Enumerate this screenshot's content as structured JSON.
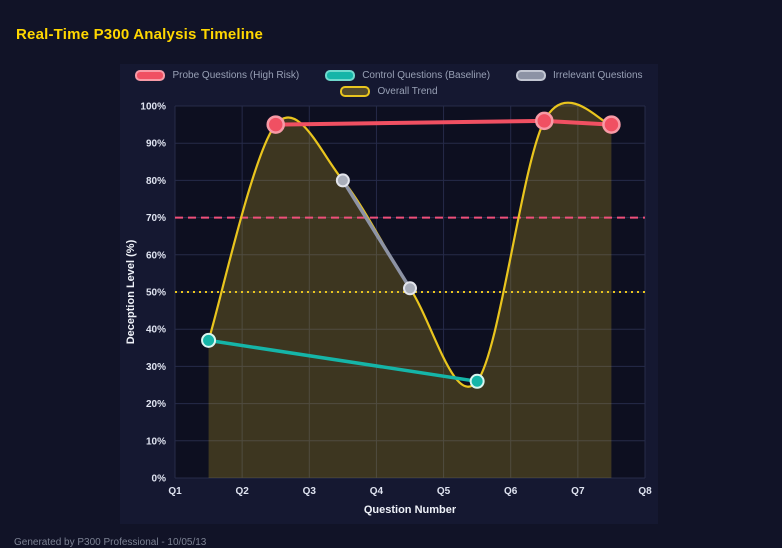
{
  "page": {
    "title": "Real-Time P300 Analysis Timeline",
    "footer": "Generated by P300 Professional - 10/05/13"
  },
  "colors": {
    "background": "#111327",
    "panel": "#151831",
    "plot_bg": "#0d0f20",
    "grid": "#262b49",
    "tick_text": "#dfe3f0",
    "axis_title": "#eef1f8",
    "legend_text": "#98a0b5",
    "title_text": "#ffd700",
    "footer_text": "#7d8394"
  },
  "chart_data": {
    "type": "line",
    "title": "Real-Time P300 Analysis Timeline",
    "xlabel": "Question Number",
    "ylabel": "Deception Level (%)",
    "x_range": [
      1,
      8
    ],
    "ylim": [
      0,
      100
    ],
    "grid": true,
    "legend_position": "top",
    "x_ticks": [
      {
        "v": 1,
        "label": "Q1"
      },
      {
        "v": 2,
        "label": "Q2"
      },
      {
        "v": 3,
        "label": "Q3"
      },
      {
        "v": 4,
        "label": "Q4"
      },
      {
        "v": 5,
        "label": "Q5"
      },
      {
        "v": 6,
        "label": "Q6"
      },
      {
        "v": 7,
        "label": "Q7"
      },
      {
        "v": 8,
        "label": "Q8"
      }
    ],
    "y_ticks": [
      {
        "v": 0,
        "label": "0%"
      },
      {
        "v": 10,
        "label": "10%"
      },
      {
        "v": 20,
        "label": "20%"
      },
      {
        "v": 30,
        "label": "30%"
      },
      {
        "v": 40,
        "label": "40%"
      },
      {
        "v": 50,
        "label": "50%"
      },
      {
        "v": 60,
        "label": "60%"
      },
      {
        "v": 70,
        "label": "70%"
      },
      {
        "v": 80,
        "label": "80%"
      },
      {
        "v": 90,
        "label": "90%"
      },
      {
        "v": 100,
        "label": "100%"
      }
    ],
    "series": [
      {
        "id": "probe",
        "name": "Probe Questions (High Risk)",
        "line_color": "#f05062",
        "line_width": 4,
        "marker_r": 8,
        "marker_fill": "#f05062",
        "marker_stroke": "#f79aa6",
        "marker_stroke_w": 2.5,
        "swatch_fill": "#f05062",
        "swatch_border": "#f79aa6",
        "points": [
          [
            2.5,
            95
          ],
          [
            6.5,
            96
          ],
          [
            7.5,
            95
          ]
        ]
      },
      {
        "id": "control",
        "name": "Control Questions (Baseline)",
        "line_color": "#15b5a8",
        "line_width": 3.5,
        "marker_r": 6.5,
        "marker_fill": "#15b5a8",
        "marker_stroke": "#d9f6f1",
        "marker_stroke_w": 2,
        "swatch_fill": "#15b5a8",
        "swatch_border": "#6fd9cd",
        "points": [
          [
            1.5,
            37
          ],
          [
            5.5,
            26
          ]
        ]
      },
      {
        "id": "irrelevant",
        "name": "Irrelevant Questions",
        "line_color": "#8d93a5",
        "line_width": 3.5,
        "marker_r": 6,
        "marker_fill": "#a9aeba",
        "marker_stroke": "#e3e5ec",
        "marker_stroke_w": 2,
        "swatch_fill": "#8d93a5",
        "swatch_border": "#c2c6d2",
        "points": [
          [
            3.5,
            80
          ],
          [
            4.5,
            51
          ]
        ]
      },
      {
        "id": "trend",
        "name": "Overall Trend",
        "line_color": "#e9c51e",
        "line_width": 2.2,
        "smooth": true,
        "fill": true,
        "fill_color": "rgba(233,197,30,0.22)",
        "marker_r": 0,
        "marker_fill": "#e9c51e",
        "marker_stroke": "#e9c51e",
        "marker_stroke_w": 0,
        "swatch_fill": "rgba(233,197,30,0.30)",
        "swatch_border": "#e9c51e",
        "points": [
          [
            1.5,
            37
          ],
          [
            2.5,
            95
          ],
          [
            3.5,
            80
          ],
          [
            4.5,
            51
          ],
          [
            5.5,
            26
          ],
          [
            6.5,
            96
          ],
          [
            7.5,
            95
          ]
        ]
      }
    ],
    "thresholds": [
      {
        "value": 70,
        "color": "#ef4f7a",
        "dash": "8 5",
        "width": 2
      },
      {
        "value": 50,
        "color": "#e9c51e",
        "dash": "2 4",
        "width": 2
      }
    ]
  }
}
